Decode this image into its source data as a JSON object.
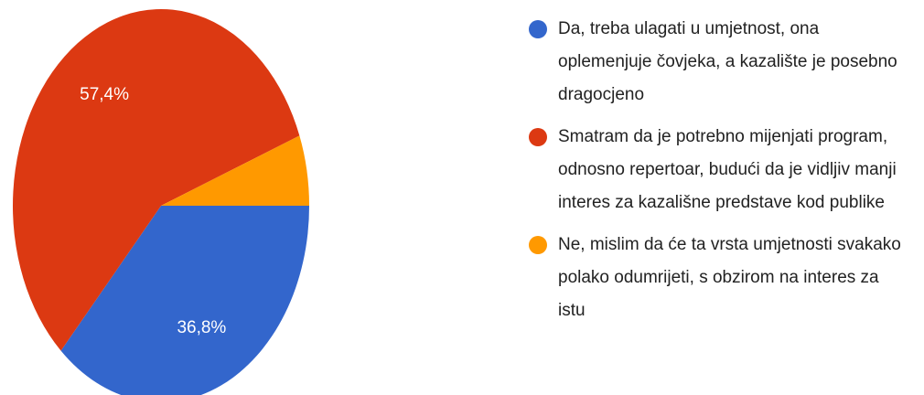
{
  "chart_data": {
    "type": "pie",
    "categories": [
      "Da, treba ulagati u umjetnost, ona oplemenjuje čovjeka, a kazalište je posebno dragocjeno",
      "Smatram da je potrebno mijenjati program, odnosno repertoar, budući da je vidljiv manji interes za kazališne predstave kod publike",
      "Ne, mislim da će ta vrsta umjetnosti svakako polako odumrijeti, s obzirom na interes za istu"
    ],
    "values": [
      36.8,
      57.4,
      5.8
    ],
    "value_labels": [
      "36,8%",
      "57,4%",
      null
    ],
    "colors": [
      "#3366cc",
      "#dc3912",
      "#ff9900"
    ],
    "legend": "right"
  }
}
